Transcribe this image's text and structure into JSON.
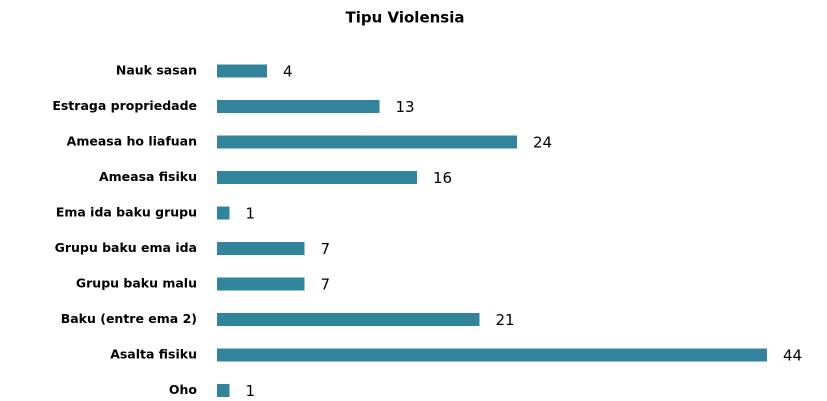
{
  "chart_data": {
    "type": "bar",
    "orientation": "horizontal",
    "title": "Tipu Violensia",
    "categories": [
      "Nauk sasan",
      "Estraga propriedade",
      "Ameasa ho liafuan",
      "Ameasa fisiku",
      "Ema ida baku grupu",
      "Grupu baku ema ida",
      "Grupu baku malu",
      "Baku (entre ema 2)",
      "Asalta fisiku",
      "Oho"
    ],
    "values": [
      4,
      13,
      24,
      16,
      1,
      7,
      7,
      21,
      44,
      1
    ],
    "color": "#31849b",
    "grid": false
  }
}
